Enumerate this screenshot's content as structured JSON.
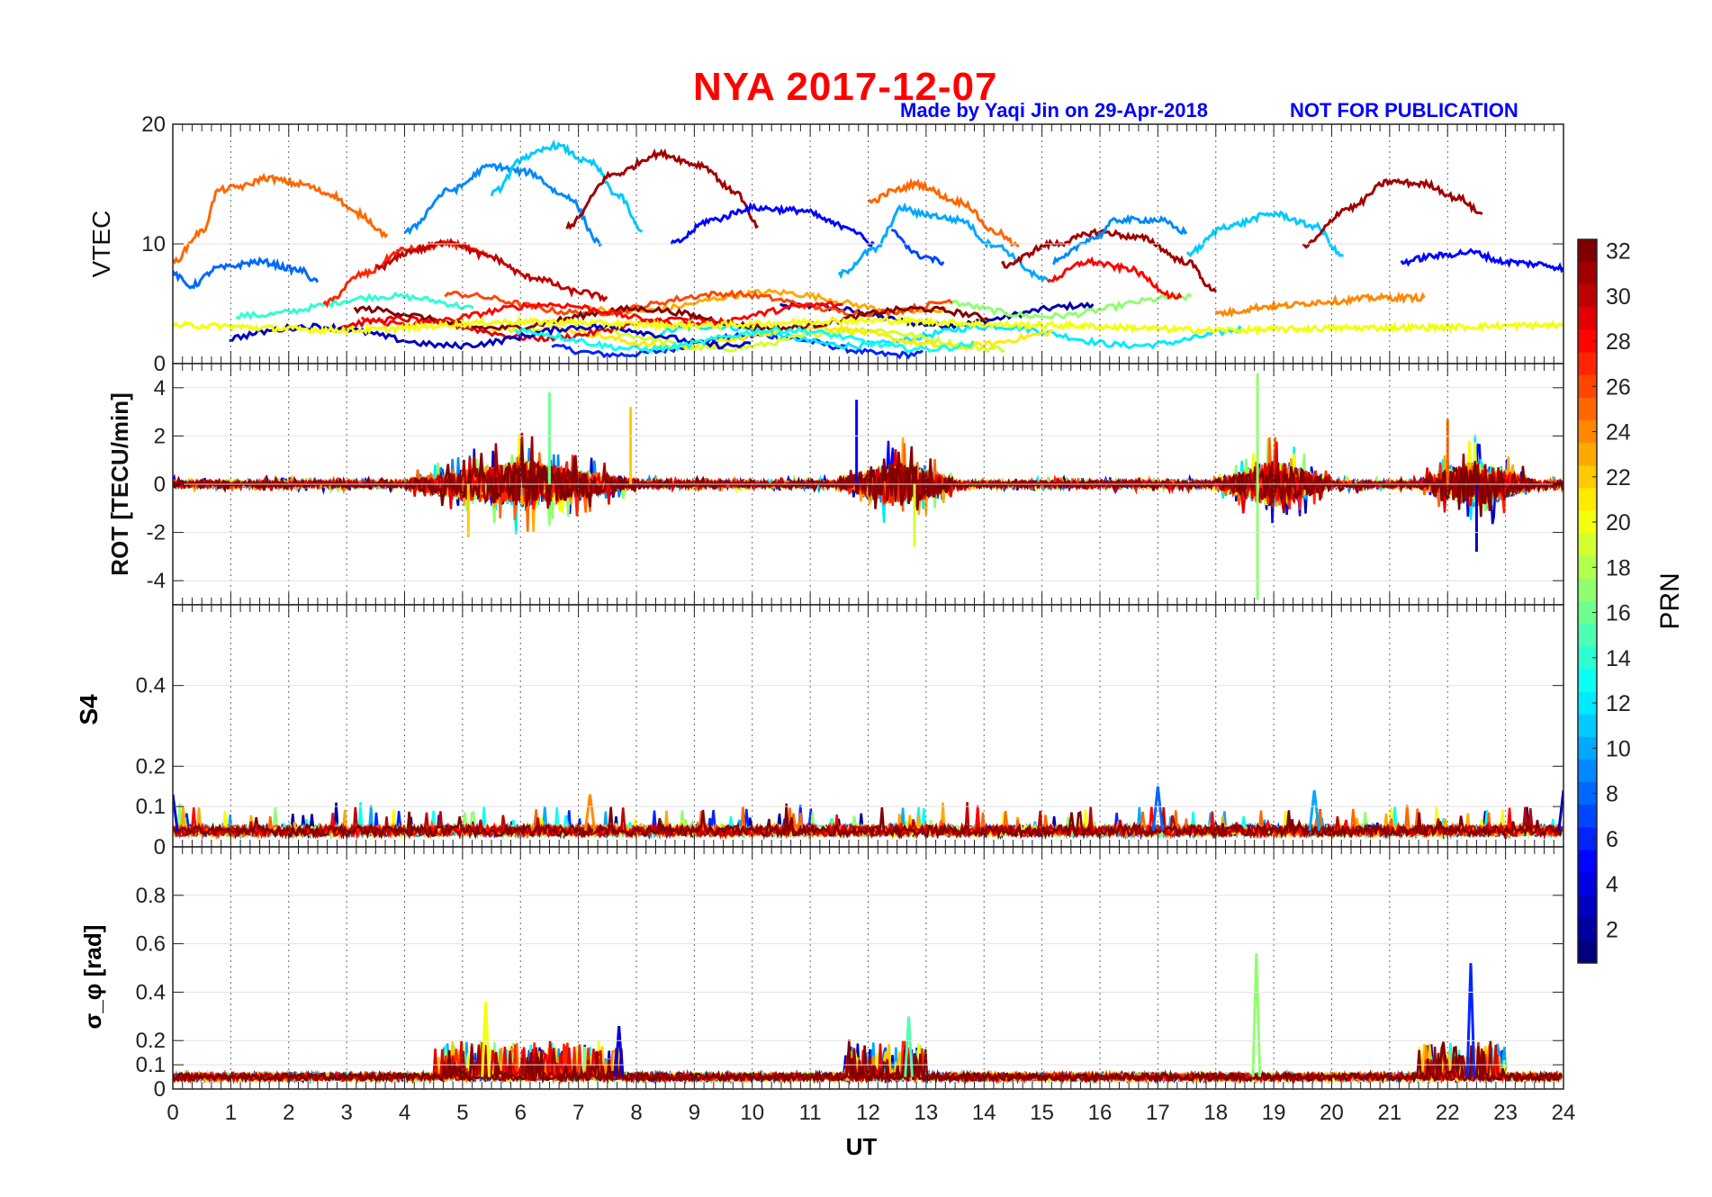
{
  "figure": {
    "title": "NYA   2017-12-07",
    "credit": "Made by Yaqi Jin on 29-Apr-2018",
    "notice": "NOT FOR PUBLICATION",
    "xlabel": "UT",
    "colorbar_label": "PRN"
  },
  "chart_data": [
    {
      "type": "line",
      "panel": "vtec",
      "ylabel": "VTEC",
      "xlim": [
        0,
        24
      ],
      "ylim": [
        0,
        20
      ],
      "yticks": [
        0,
        10,
        20
      ],
      "grid": "vertical dotted at each hour",
      "series_color_by": "PRN (jet colormap, 1-32)",
      "series": [
        {
          "prn": 25,
          "x": [
            0,
            0.5,
            0.8,
            1.2,
            1.6,
            2.2,
            2.7,
            3.2,
            3.7
          ],
          "y": [
            8.5,
            11,
            14.5,
            14.8,
            15.5,
            15,
            14.2,
            12.5,
            10.8
          ]
        },
        {
          "prn": 8,
          "x": [
            0,
            0.3,
            0.8,
            1.5,
            2.2,
            2.5
          ],
          "y": [
            7.5,
            6.5,
            8,
            8.5,
            7.8,
            6.8
          ]
        },
        {
          "prn": 27,
          "x": [
            2.6,
            3.3,
            4,
            4.8,
            5.5
          ],
          "y": [
            5,
            7.5,
            9.5,
            10,
            9
          ]
        },
        {
          "prn": 30,
          "x": [
            3.5,
            4.2,
            4.8,
            5.4,
            6.2,
            7,
            7.5
          ],
          "y": [
            8,
            9.5,
            10.2,
            9,
            7.2,
            6,
            5.5
          ]
        },
        {
          "prn": 9,
          "x": [
            4,
            4.8,
            5.5,
            6.1,
            6.8,
            7.4
          ],
          "y": [
            11,
            14.5,
            16.5,
            16,
            14,
            10
          ]
        },
        {
          "prn": 11,
          "x": [
            5.5,
            6.1,
            6.6,
            7.2,
            7.7,
            8.1
          ],
          "y": [
            14.2,
            17.3,
            18.2,
            16.8,
            14,
            11
          ]
        },
        {
          "prn": 31,
          "x": [
            6.8,
            7.6,
            8.4,
            9.1,
            9.7,
            10.1
          ],
          "y": [
            11.5,
            15.8,
            17.5,
            16.6,
            14.4,
            11.5
          ]
        },
        {
          "prn": 5,
          "x": [
            8.6,
            9.3,
            10,
            10.8,
            11.6,
            12.1
          ],
          "y": [
            10,
            12,
            13,
            12.8,
            11.5,
            10
          ]
        },
        {
          "prn": 25,
          "x": [
            12,
            12.5,
            12.8,
            13.6,
            14.2,
            14.6
          ],
          "y": [
            13.5,
            14.5,
            15,
            13.5,
            11,
            9.8
          ]
        },
        {
          "prn": 10,
          "x": [
            11.5,
            12.1,
            12.6,
            12.9,
            13.6,
            14.1,
            15.1
          ],
          "y": [
            7.5,
            9.5,
            13,
            12.5,
            12,
            10,
            7
          ]
        },
        {
          "prn": 7,
          "x": [
            12.4,
            12.9,
            13.3
          ],
          "y": [
            11,
            9,
            8.5
          ]
        },
        {
          "prn": 31,
          "x": [
            14.3,
            15.2,
            16,
            16.7,
            17.5,
            18
          ],
          "y": [
            8.2,
            10,
            11,
            10.5,
            8.5,
            6
          ]
        },
        {
          "prn": 28,
          "x": [
            15.1,
            15.8,
            16.4,
            17.4
          ],
          "y": [
            7,
            8.5,
            8,
            5.5
          ]
        },
        {
          "prn": 9,
          "x": [
            15.2,
            15.9,
            16.3,
            17,
            17.5
          ],
          "y": [
            8.5,
            10.5,
            12,
            12,
            11
          ]
        },
        {
          "prn": 11,
          "x": [
            17.5,
            18.2,
            19,
            19.7,
            20.2
          ],
          "y": [
            9.2,
            11.5,
            12.5,
            11.5,
            9
          ]
        },
        {
          "prn": 31,
          "x": [
            19.5,
            20.3,
            21,
            21.6,
            22.2,
            22.6
          ],
          "y": [
            9.8,
            13,
            15.2,
            15,
            13.8,
            12.5
          ]
        },
        {
          "prn": 5,
          "x": [
            21.2,
            21.8,
            22.4,
            23,
            23.6,
            24
          ],
          "y": [
            8.5,
            9,
            9.3,
            8.5,
            8.3,
            8
          ]
        },
        {
          "prn": 24,
          "x": [
            18,
            19,
            20,
            20.8,
            21.6
          ],
          "y": [
            4.2,
            4.8,
            5.2,
            5.5,
            5.5
          ]
        },
        {
          "prn": 20,
          "x": [
            0,
            3,
            6,
            9,
            12,
            15,
            18,
            21,
            24
          ],
          "y": [
            3.2,
            2.8,
            3.5,
            3.2,
            3.6,
            3.2,
            2.8,
            3,
            3.2
          ]
        }
      ]
    },
    {
      "type": "line",
      "panel": "rot",
      "ylabel": "ROT [TECU/min]",
      "xlim": [
        0,
        24
      ],
      "ylim": [
        -5,
        5
      ],
      "yticks": [
        -4,
        -2,
        0,
        2,
        4
      ],
      "burst_windows_ut": [
        [
          4,
          8
        ],
        [
          11.5,
          13.5
        ],
        [
          18,
          20
        ],
        [
          21.5,
          23.5
        ]
      ],
      "extremes": {
        "max": 4.6,
        "min": -4.8
      }
    },
    {
      "type": "line",
      "panel": "s4",
      "ylabel": "S4",
      "xlim": [
        0,
        24
      ],
      "ylim": [
        0,
        0.6
      ],
      "yticks": [
        0,
        0.1,
        0.2,
        0.4
      ],
      "baseline": 0.04,
      "peaks": [
        {
          "x": 0,
          "y": 0.13
        },
        {
          "x": 7.2,
          "y": 0.13
        },
        {
          "x": 17,
          "y": 0.15
        },
        {
          "x": 19.7,
          "y": 0.14
        },
        {
          "x": 24,
          "y": 0.14
        }
      ]
    },
    {
      "type": "line",
      "panel": "sigma_phi",
      "ylabel": "σ_φ [rad]",
      "xlim": [
        0,
        24
      ],
      "ylim": [
        0,
        1
      ],
      "yticks": [
        0,
        0.1,
        0.2,
        0.4,
        0.6,
        0.8
      ],
      "baseline": 0.05,
      "peaks": [
        {
          "x": 5.4,
          "y": 0.36
        },
        {
          "x": 7.7,
          "y": 0.26
        },
        {
          "x": 12.7,
          "y": 0.3
        },
        {
          "x": 18.7,
          "y": 0.56
        },
        {
          "x": 22.4,
          "y": 0.52
        }
      ]
    }
  ],
  "axes": {
    "x_ticks": [
      "0",
      "1",
      "2",
      "3",
      "4",
      "5",
      "6",
      "7",
      "8",
      "9",
      "10",
      "11",
      "12",
      "13",
      "14",
      "15",
      "16",
      "17",
      "18",
      "19",
      "20",
      "21",
      "22",
      "23",
      "24"
    ],
    "vtec_ticks": [
      "0",
      "10",
      "20"
    ],
    "rot_ticks": [
      "4",
      "2",
      "0",
      "-2",
      "-4"
    ],
    "s4_ticks": [
      "0.4",
      "0.2",
      "0.1",
      "0"
    ],
    "sig_ticks": [
      "0.8",
      "0.6",
      "0.4",
      "0.2",
      "0.1",
      "0"
    ],
    "colorbar_ticks": [
      "32",
      "30",
      "28",
      "26",
      "24",
      "22",
      "20",
      "18",
      "16",
      "14",
      "12",
      "10",
      "8",
      "6",
      "4",
      "2"
    ]
  },
  "colors": {
    "title": "#ff0000",
    "credit": "#0000ff"
  }
}
